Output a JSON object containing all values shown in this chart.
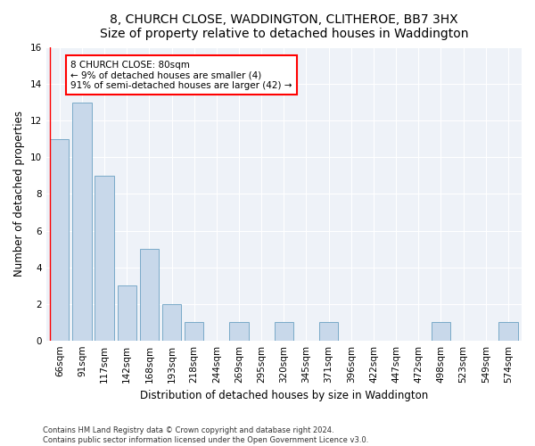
{
  "title1": "8, CHURCH CLOSE, WADDINGTON, CLITHEROE, BB7 3HX",
  "title2": "Size of property relative to detached houses in Waddington",
  "xlabel": "Distribution of detached houses by size in Waddington",
  "ylabel": "Number of detached properties",
  "categories": [
    "66sqm",
    "91sqm",
    "117sqm",
    "142sqm",
    "168sqm",
    "193sqm",
    "218sqm",
    "244sqm",
    "269sqm",
    "295sqm",
    "320sqm",
    "345sqm",
    "371sqm",
    "396sqm",
    "422sqm",
    "447sqm",
    "472sqm",
    "498sqm",
    "523sqm",
    "549sqm",
    "574sqm"
  ],
  "values": [
    11,
    13,
    9,
    3,
    5,
    2,
    1,
    0,
    1,
    0,
    1,
    0,
    1,
    0,
    0,
    0,
    0,
    1,
    0,
    0,
    1
  ],
  "bar_color": "#c8d8ea",
  "bar_edge_color": "#7aaac8",
  "annotation_text_line1": "8 CHURCH CLOSE: 80sqm",
  "annotation_text_line2": "← 9% of detached houses are smaller (4)",
  "annotation_text_line3": "91% of semi-detached houses are larger (42) →",
  "annotation_box_color": "white",
  "annotation_box_edge_color": "red",
  "vline_color": "red",
  "ylim": [
    0,
    16
  ],
  "yticks": [
    0,
    2,
    4,
    6,
    8,
    10,
    12,
    14,
    16
  ],
  "footer1": "Contains HM Land Registry data © Crown copyright and database right 2024.",
  "footer2": "Contains public sector information licensed under the Open Government Licence v3.0.",
  "bg_color": "#ffffff",
  "plot_bg_color": "#eef2f8",
  "grid_color": "#ffffff",
  "title_fontsize": 10,
  "label_fontsize": 8.5,
  "tick_fontsize": 7.5
}
